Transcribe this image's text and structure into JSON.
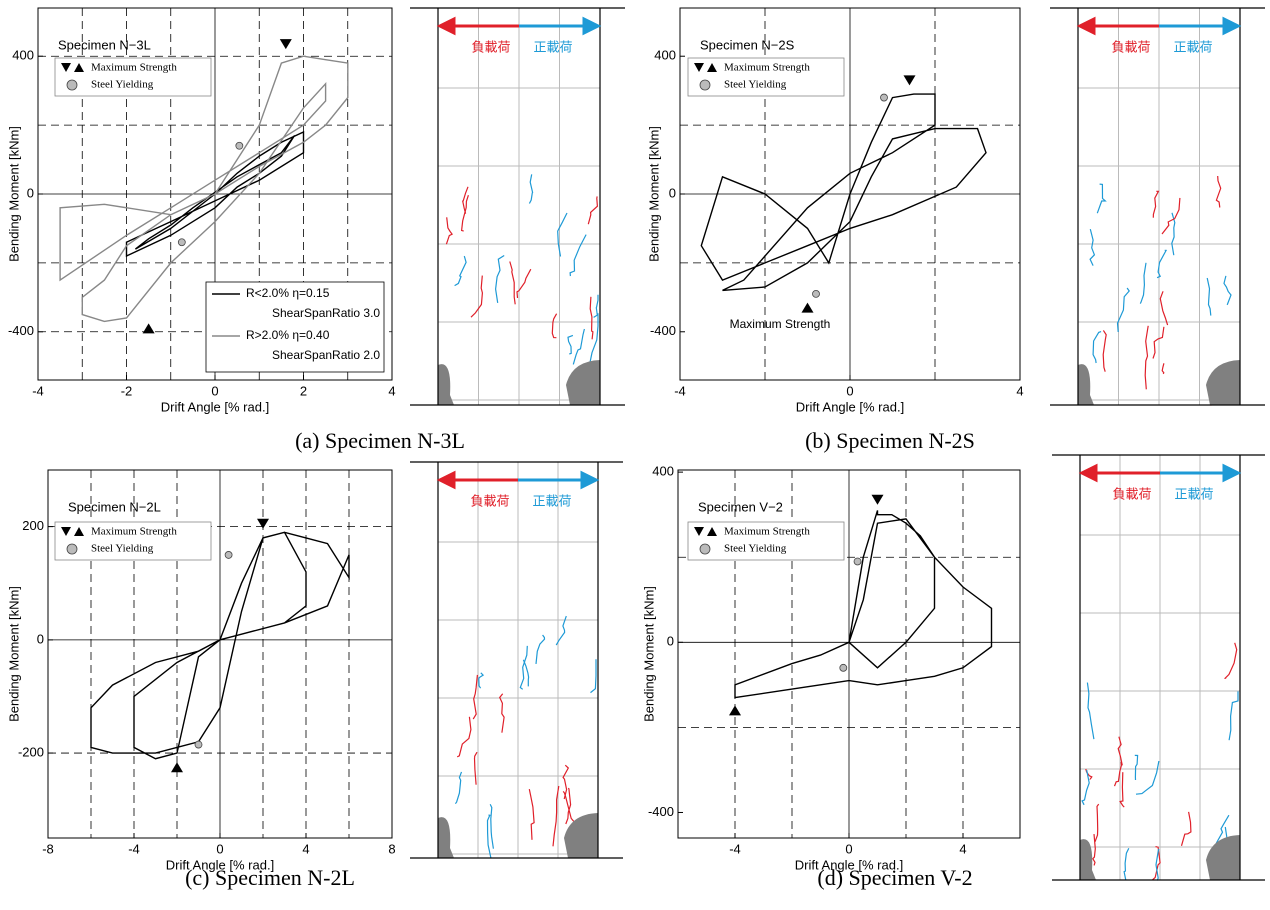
{
  "chart_data": [
    {
      "type": "line",
      "title": "Specimen N−3L",
      "xlabel": "Drift Angle [% rad.]",
      "ylabel": "Bending Moment [kNm]",
      "xlim": [
        -4,
        4
      ],
      "ylim": [
        -540,
        540
      ],
      "xticks": [
        -4,
        -2,
        0,
        2,
        4
      ],
      "yticks": [
        -400,
        0,
        400
      ],
      "xgrid": [
        -3,
        -2,
        -1,
        1,
        2,
        3
      ],
      "ygrid": [
        -400,
        -200,
        200,
        400
      ],
      "series": [
        {
          "name": "R<2.0%  η=0.15",
          "legend_sub": "ShearSpanRatio 3.0",
          "color": "#000000",
          "x": [
            0,
            0.5,
            1,
            1.5,
            2,
            2,
            1,
            0,
            -1,
            -1.5,
            -2,
            -2,
            -1,
            0,
            0.5,
            1,
            1.5,
            1.8,
            1.5,
            0.5,
            -0.5,
            -1,
            -1.5,
            -1.8,
            -1,
            0
          ],
          "values": [
            0,
            60,
            110,
            150,
            180,
            120,
            40,
            -20,
            -80,
            -110,
            -140,
            -180,
            -120,
            -40,
            20,
            60,
            110,
            170,
            120,
            50,
            -40,
            -90,
            -130,
            -160,
            -100,
            0
          ]
        },
        {
          "name": "R>2.0%  η=0.40",
          "legend_sub": "ShearSpanRatio 2.0",
          "color": "#888888",
          "x": [
            0,
            1,
            1.5,
            2,
            2.5,
            3,
            3,
            2.5,
            2,
            1,
            0,
            -1,
            -2,
            -2.5,
            -3,
            -3,
            -2.5,
            -2,
            -1,
            0,
            1,
            2,
            2.5,
            2.5,
            2,
            1,
            0,
            -1,
            -2,
            -3.5,
            -3.5,
            -2.5,
            -1,
            0
          ],
          "values": [
            0,
            200,
            380,
            400,
            390,
            380,
            280,
            200,
            150,
            80,
            0,
            -60,
            -150,
            -250,
            -300,
            -350,
            -370,
            -360,
            -200,
            -80,
            60,
            250,
            320,
            270,
            200,
            120,
            40,
            -40,
            -120,
            -250,
            -40,
            -30,
            -60,
            0
          ]
        },
        {
          "name": "Maximum Strength",
          "marker": "triangle",
          "color": "#000000",
          "x": [
            1.6,
            -1.5
          ],
          "values": [
            435,
            -390
          ]
        },
        {
          "name": "Steel Yielding",
          "marker": "circle",
          "color": "#bbbbbb",
          "x": [
            0.55,
            -0.75
          ],
          "values": [
            140,
            -140
          ]
        }
      ],
      "caption": "(a) Specimen N-3L",
      "crack_labels": [
        "負載荷",
        "正載荷"
      ]
    },
    {
      "type": "line",
      "title": "Specimen N−2S",
      "xlabel": "Drift Angle [% rad.]",
      "ylabel": "Bending Moment [kNm]",
      "xlim": [
        -4,
        4
      ],
      "ylim": [
        -540,
        540
      ],
      "xticks": [
        -4,
        0,
        4
      ],
      "yticks": [
        -400,
        0,
        400
      ],
      "xgrid": [
        -2,
        2
      ],
      "ygrid": [
        -200,
        200
      ],
      "series": [
        {
          "color": "#000000",
          "x": [
            0,
            0.5,
            1,
            1.5,
            2,
            2,
            1,
            0,
            -1,
            -2,
            -2.5,
            -3,
            -2,
            -1,
            0,
            0.5,
            1,
            2,
            3,
            3.2,
            2.5,
            1,
            0,
            -1,
            -2,
            -3,
            -3.5,
            -3,
            -2,
            -1,
            -0.5,
            0
          ],
          "values": [
            0,
            150,
            280,
            290,
            290,
            200,
            120,
            60,
            -40,
            -180,
            -250,
            -280,
            -270,
            -200,
            -80,
            50,
            160,
            190,
            190,
            120,
            20,
            -60,
            -100,
            -150,
            -200,
            -250,
            -150,
            50,
            0,
            -100,
            -200,
            0
          ]
        },
        {
          "name": "Maximum Strength",
          "marker": "triangle",
          "color": "#000000",
          "x": [
            1.4,
            -1
          ],
          "values": [
            330,
            -330
          ]
        },
        {
          "name": "Steel Yielding",
          "marker": "circle",
          "color": "#bbbbbb",
          "x": [
            0.8,
            -0.8
          ],
          "values": [
            280,
            -290
          ]
        }
      ],
      "annotations": [
        "Maximum Strength"
      ],
      "caption": "(b) Specimen N-2S",
      "crack_labels": [
        "負載荷",
        "正載荷"
      ]
    },
    {
      "type": "line",
      "title": "Specimen N−2L",
      "xlabel": "Drift Angle [% rad.]",
      "ylabel": "Bending Moment [kNm]",
      "xlim": [
        -8,
        8
      ],
      "ylim": [
        -350,
        300
      ],
      "xticks": [
        -8,
        -4,
        0,
        4,
        8
      ],
      "yticks": [
        -200,
        0,
        200
      ],
      "xgrid": [
        -6,
        -4,
        -2,
        2,
        4,
        6
      ],
      "ygrid": [
        -200,
        200
      ],
      "series": [
        {
          "color": "#000000",
          "x": [
            0,
            1,
            2,
            3,
            4,
            5,
            6,
            6,
            5,
            3,
            1,
            0,
            -1,
            -3,
            -5,
            -6,
            -6,
            -5,
            -3,
            -1,
            0,
            1,
            2,
            3,
            4,
            4,
            3,
            1,
            0,
            -1,
            -2,
            -3,
            -4,
            -4,
            -2,
            0
          ],
          "values": [
            0,
            100,
            180,
            190,
            180,
            170,
            110,
            150,
            60,
            30,
            10,
            0,
            -20,
            -40,
            -80,
            -120,
            -190,
            -200,
            -200,
            -180,
            -120,
            50,
            180,
            190,
            120,
            60,
            30,
            10,
            0,
            -30,
            -200,
            -210,
            -190,
            -100,
            -40,
            0
          ]
        },
        {
          "name": "Maximum Strength",
          "marker": "triangle",
          "color": "#000000",
          "x": [
            2,
            -2
          ],
          "values": [
            205,
            -225
          ]
        },
        {
          "name": "Steel Yielding",
          "marker": "circle",
          "color": "#bbbbbb",
          "x": [
            0.4,
            -1
          ],
          "values": [
            150,
            -185
          ]
        }
      ],
      "caption": "(c) Specimen N-2L",
      "crack_labels": [
        "負載荷",
        "正載荷"
      ]
    },
    {
      "type": "line",
      "title": "Specimen V−2",
      "xlabel": "Drift Angle [% rad.]",
      "ylabel": "Bending Moment [kNm]",
      "xlim": [
        -6,
        6
      ],
      "ylim": [
        -460,
        405
      ],
      "xticks": [
        -4,
        0,
        4
      ],
      "yticks": [
        -400,
        0,
        400
      ],
      "xgrid": [
        -4,
        -2,
        2,
        4
      ],
      "ygrid": [
        -200,
        200
      ],
      "series": [
        {
          "color": "#000000",
          "x": [
            0,
            0.5,
            1,
            1,
            1.5,
            2,
            2.5,
            3,
            4,
            5,
            5,
            4,
            3,
            2,
            1,
            0,
            -1,
            -2,
            -4,
            -4,
            -2,
            -1,
            0,
            0.5,
            1,
            2,
            3,
            3,
            2,
            1,
            0
          ],
          "values": [
            0,
            200,
            310,
            300,
            300,
            280,
            250,
            200,
            130,
            80,
            -10,
            -60,
            -80,
            -90,
            -100,
            -90,
            -100,
            -110,
            -130,
            -100,
            -50,
            -30,
            0,
            100,
            280,
            290,
            200,
            80,
            0,
            -60,
            0
          ]
        },
        {
          "name": "Maximum Strength",
          "marker": "triangle",
          "color": "#000000",
          "x": [
            1,
            -4
          ],
          "values": [
            335,
            -160
          ]
        },
        {
          "name": "Steel Yielding",
          "marker": "circle",
          "color": "#bbbbbb",
          "x": [
            0.3,
            -0.2
          ],
          "values": [
            190,
            -60
          ]
        }
      ],
      "caption": "(d) Specimen V-2",
      "crack_labels": [
        "負載荷",
        "正載荷"
      ]
    }
  ]
}
